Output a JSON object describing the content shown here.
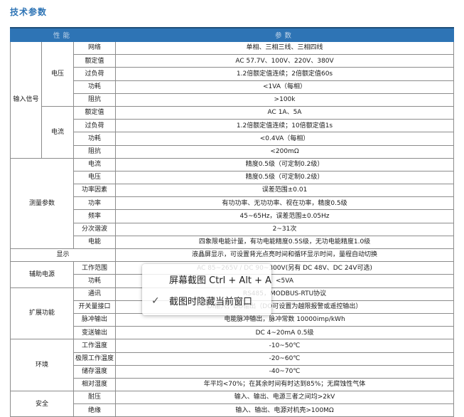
{
  "page": {
    "title": "技术参数"
  },
  "colors": {
    "title": "#2e74b5",
    "header_bg": "#2e74b5",
    "header_text": "#c3d6ea",
    "border": "#8c8c8c",
    "outer_border": "#595959"
  },
  "table": {
    "header_cells": [
      {
        "t": "性能",
        "cs": 3
      },
      {
        "t": "参数",
        "cs": 1
      }
    ],
    "group_start_rows": [
      9,
      16,
      17,
      19,
      23,
      27
    ],
    "rows": [
      [
        {
          "t": "输入信号",
          "rs": 9
        },
        {
          "t": "电压",
          "rs": 5
        },
        {
          "t": "网络"
        },
        {
          "t": "单相、三相三线、三相四线"
        }
      ],
      [
        {
          "t": "额定值"
        },
        {
          "t": "AC 57.7V、100V、220V、380V"
        }
      ],
      [
        {
          "t": "过负荷"
        },
        {
          "t": "1.2倍额定值连续；2倍额定值60s"
        }
      ],
      [
        {
          "t": "功耗"
        },
        {
          "t": "<1VA（每相）"
        }
      ],
      [
        {
          "t": "阻抗"
        },
        {
          "t": ">100k"
        }
      ],
      [
        {
          "t": "电流",
          "rs": 4
        },
        {
          "t": "额定值"
        },
        {
          "t": "AC 1A、5A"
        }
      ],
      [
        {
          "t": "过负荷"
        },
        {
          "t": "1.2倍额定值连续；10倍额定值1s"
        }
      ],
      [
        {
          "t": "功耗"
        },
        {
          "t": "<0.4VA（每相）"
        }
      ],
      [
        {
          "t": "阻抗"
        },
        {
          "t": "<200mΩ"
        }
      ],
      [
        {
          "t": "测量参数",
          "cs": 2,
          "rs": 7
        },
        {
          "t": "电流"
        },
        {
          "t": "精度0.5级（可定制0.2级）"
        }
      ],
      [
        {
          "t": "电压"
        },
        {
          "t": "精度0.5级（可定制0.2级）"
        }
      ],
      [
        {
          "t": "功率因素"
        },
        {
          "t": "误差范围±0.01"
        }
      ],
      [
        {
          "t": "功率"
        },
        {
          "t": "有功功率、无功功率、视在功率，精度0.5级"
        }
      ],
      [
        {
          "t": "频率"
        },
        {
          "t": "45~65Hz，误差范围±0.05Hz"
        }
      ],
      [
        {
          "t": "分次谐波"
        },
        {
          "t": "2~31次"
        }
      ],
      [
        {
          "t": "电能"
        },
        {
          "t": "四象限电能计量，有功电能精度0.5S级，无功电能精度1.0级"
        }
      ],
      [
        {
          "t": "显示",
          "cs": 3
        },
        {
          "t": "液晶屏显示，可设置背光点亮时间和循环显示时间，量程自动切换"
        }
      ],
      [
        {
          "t": "辅助电源",
          "cs": 2,
          "rs": 2
        },
        {
          "t": "工作范围"
        },
        {
          "t": "AC 85~265V / DC 90~300V(另有 DC 48V、DC 24V可选)"
        }
      ],
      [
        {
          "t": "功耗"
        },
        {
          "t": "<5VA"
        }
      ],
      [
        {
          "t": "扩展功能",
          "cs": 2,
          "rs": 4
        },
        {
          "t": "通讯"
        },
        {
          "t": "RS485，MODBUS-RTU协议"
        }
      ],
      [
        {
          "t": "开关量接口"
        },
        {
          "t": "DI输入，DO输出（DO可设置为越限报警或遥控输出）"
        }
      ],
      [
        {
          "t": "脉冲输出"
        },
        {
          "t": "电能脉冲输出，脉冲常数 10000imp/kWh"
        }
      ],
      [
        {
          "t": "变送输出"
        },
        {
          "t": "DC 4~20mA 0.5级"
        }
      ],
      [
        {
          "t": "环境",
          "cs": 2,
          "rs": 4
        },
        {
          "t": "工作温度"
        },
        {
          "t": "-10~50℃"
        }
      ],
      [
        {
          "t": "极限工作温度"
        },
        {
          "t": "-20~60℃"
        }
      ],
      [
        {
          "t": "储存温度"
        },
        {
          "t": "-40~70℃"
        }
      ],
      [
        {
          "t": "相对湿度"
        },
        {
          "t": "年平均<70%；在其余时间有时达到85%；无腐蚀性气体"
        }
      ],
      [
        {
          "t": "安全",
          "cs": 2,
          "rs": 2
        },
        {
          "t": "耐压"
        },
        {
          "t": "输入、输出、电源三者之间均>2kV"
        }
      ],
      [
        {
          "t": "绝缘"
        },
        {
          "t": "输入、输出、电源对机壳>100MΩ"
        }
      ]
    ]
  },
  "overlay": {
    "hotkey_label": "屏幕截图 Ctrl + Alt + A",
    "hide_window_label": "截图时隐藏当前窗口",
    "check_glyph": "✓",
    "checked": true
  }
}
